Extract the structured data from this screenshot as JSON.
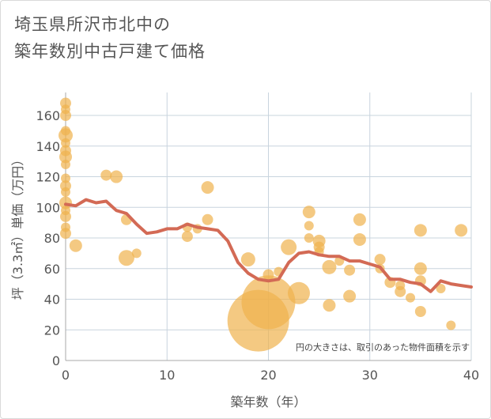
{
  "title_lines": [
    "埼玉県所沢市北中の",
    "築年数別中古戸建て価格"
  ],
  "colors": {
    "bubble": "#f0b24d",
    "line": "#d36a55",
    "grid": "#c8d4de",
    "plot_bg": "#ffffff"
  },
  "chart_data": {
    "type": "scatter",
    "title": "埼玉県所沢市北中の築年数別中古戸建て価格",
    "xlabel": "築年数（年）",
    "ylabel": "坪（3.3㎡）単価（万円）",
    "xlim": [
      0,
      40
    ],
    "ylim": [
      0,
      175
    ],
    "xticks": [
      0,
      10,
      20,
      30,
      40
    ],
    "yticks": [
      0,
      20,
      40,
      60,
      80,
      100,
      120,
      140,
      160
    ],
    "grid": true,
    "note": "円の大きさは、取引のあった物件面積を示す",
    "bubbles": [
      {
        "x": 0,
        "y": 168,
        "r": 7
      },
      {
        "x": 0,
        "y": 164,
        "r": 6
      },
      {
        "x": 0,
        "y": 160,
        "r": 7
      },
      {
        "x": 0,
        "y": 150,
        "r": 6
      },
      {
        "x": 0,
        "y": 147,
        "r": 9
      },
      {
        "x": 0,
        "y": 142,
        "r": 6
      },
      {
        "x": 0,
        "y": 137,
        "r": 7
      },
      {
        "x": 0,
        "y": 133,
        "r": 8
      },
      {
        "x": 0,
        "y": 128,
        "r": 6
      },
      {
        "x": 0,
        "y": 119,
        "r": 6
      },
      {
        "x": 0,
        "y": 114,
        "r": 7
      },
      {
        "x": 0,
        "y": 110,
        "r": 6
      },
      {
        "x": 0,
        "y": 103,
        "r": 8
      },
      {
        "x": 0,
        "y": 98,
        "r": 6
      },
      {
        "x": 0,
        "y": 94,
        "r": 7
      },
      {
        "x": 0,
        "y": 87,
        "r": 6
      },
      {
        "x": 0,
        "y": 83,
        "r": 7
      },
      {
        "x": 1,
        "y": 75,
        "r": 8
      },
      {
        "x": 4,
        "y": 121,
        "r": 7
      },
      {
        "x": 5,
        "y": 120,
        "r": 8
      },
      {
        "x": 6,
        "y": 92,
        "r": 7
      },
      {
        "x": 6,
        "y": 67,
        "r": 10
      },
      {
        "x": 7,
        "y": 70,
        "r": 6
      },
      {
        "x": 12,
        "y": 81,
        "r": 7
      },
      {
        "x": 12,
        "y": 87,
        "r": 6
      },
      {
        "x": 13,
        "y": 86,
        "r": 6
      },
      {
        "x": 14,
        "y": 113,
        "r": 8
      },
      {
        "x": 14,
        "y": 92,
        "r": 7
      },
      {
        "x": 18,
        "y": 66,
        "r": 9
      },
      {
        "x": 19,
        "y": 26,
        "r": 39
      },
      {
        "x": 20,
        "y": 38,
        "r": 34
      },
      {
        "x": 20,
        "y": 56,
        "r": 7
      },
      {
        "x": 21,
        "y": 58,
        "r": 6
      },
      {
        "x": 22,
        "y": 74,
        "r": 10
      },
      {
        "x": 23,
        "y": 44,
        "r": 14
      },
      {
        "x": 24,
        "y": 97,
        "r": 8
      },
      {
        "x": 24,
        "y": 88,
        "r": 6
      },
      {
        "x": 24,
        "y": 80,
        "r": 6
      },
      {
        "x": 25,
        "y": 78,
        "r": 8
      },
      {
        "x": 25,
        "y": 74,
        "r": 7
      },
      {
        "x": 25,
        "y": 71,
        "r": 6
      },
      {
        "x": 26,
        "y": 61,
        "r": 9
      },
      {
        "x": 26,
        "y": 36,
        "r": 8
      },
      {
        "x": 27,
        "y": 65,
        "r": 6
      },
      {
        "x": 28,
        "y": 59,
        "r": 7
      },
      {
        "x": 28,
        "y": 42,
        "r": 8
      },
      {
        "x": 29,
        "y": 92,
        "r": 8
      },
      {
        "x": 29,
        "y": 79,
        "r": 8
      },
      {
        "x": 31,
        "y": 66,
        "r": 7
      },
      {
        "x": 31,
        "y": 60,
        "r": 6
      },
      {
        "x": 32,
        "y": 51,
        "r": 7
      },
      {
        "x": 33,
        "y": 49,
        "r": 6
      },
      {
        "x": 33,
        "y": 45,
        "r": 7
      },
      {
        "x": 34,
        "y": 41,
        "r": 6
      },
      {
        "x": 35,
        "y": 85,
        "r": 8
      },
      {
        "x": 35,
        "y": 60,
        "r": 8
      },
      {
        "x": 35,
        "y": 52,
        "r": 7
      },
      {
        "x": 35,
        "y": 32,
        "r": 7
      },
      {
        "x": 37,
        "y": 47,
        "r": 6
      },
      {
        "x": 38,
        "y": 23,
        "r": 6
      },
      {
        "x": 39,
        "y": 85,
        "r": 8
      }
    ],
    "series": [
      {
        "x": [
          0,
          1,
          2,
          3,
          4,
          5,
          6,
          7,
          8,
          9,
          10,
          11,
          12,
          13,
          14,
          15,
          16,
          17,
          18,
          19,
          20,
          21,
          22,
          23,
          24,
          25,
          26,
          27,
          28,
          29,
          30,
          31,
          32,
          33,
          34,
          35,
          36,
          37,
          38,
          39,
          40
        ],
        "y": [
          102,
          101,
          105,
          103,
          104,
          98,
          96,
          89,
          83,
          84,
          86,
          86,
          89,
          87,
          86,
          85,
          78,
          64,
          57,
          53,
          52,
          53,
          64,
          70,
          71,
          69,
          68,
          68,
          65,
          65,
          63,
          61,
          53,
          53,
          51,
          50,
          45,
          52,
          50,
          49,
          48
        ]
      }
    ]
  }
}
